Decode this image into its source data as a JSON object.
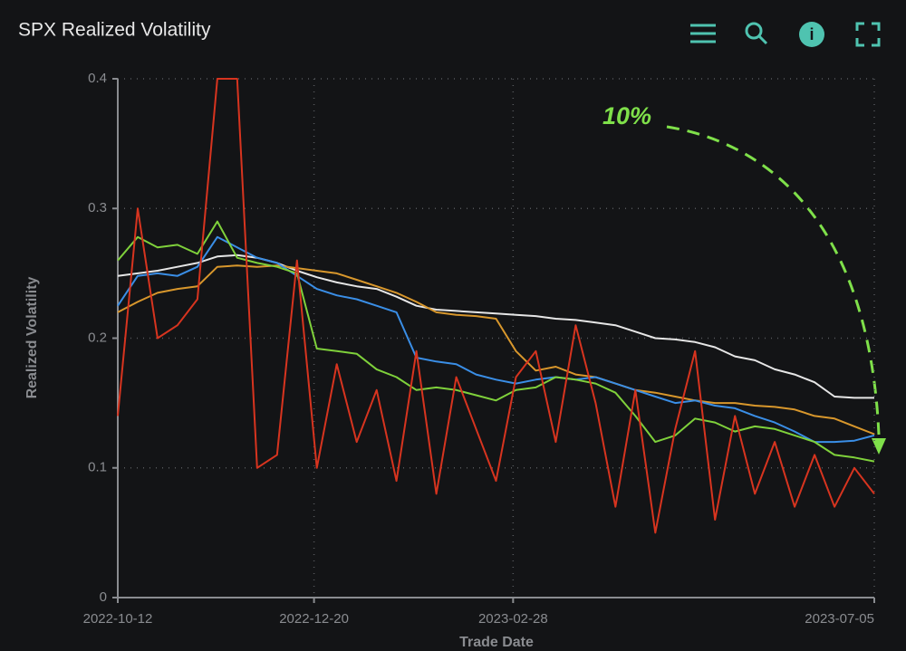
{
  "chart_data": {
    "type": "line",
    "title": "SPX Realized Volatility",
    "x_label": "Trade Date",
    "y_label": "Realized Volatility",
    "annotation": "10%",
    "x": [
      "2022-10-12",
      "2022-10-19",
      "2022-10-26",
      "2022-11-02",
      "2022-11-09",
      "2022-11-16",
      "2022-11-23",
      "2022-11-30",
      "2022-12-07",
      "2022-12-14",
      "2022-12-21",
      "2022-12-28",
      "2023-01-04",
      "2023-01-11",
      "2023-01-18",
      "2023-01-25",
      "2023-02-01",
      "2023-02-08",
      "2023-02-15",
      "2023-02-22",
      "2023-03-01",
      "2023-03-08",
      "2023-03-15",
      "2023-03-22",
      "2023-03-29",
      "2023-04-05",
      "2023-04-12",
      "2023-04-19",
      "2023-04-26",
      "2023-05-03",
      "2023-05-10",
      "2023-05-17",
      "2023-05-24",
      "2023-05-31",
      "2023-06-07",
      "2023-06-14",
      "2023-06-21",
      "2023-06-28",
      "2023-07-05"
    ],
    "xlim": [
      "2022-10-12",
      "2023-07-05"
    ],
    "xticks": [
      "2022-10-12",
      "2022-12-20",
      "2023-02-28",
      "2023-07-05"
    ],
    "ylim": [
      0,
      0.4
    ],
    "yticks": [
      0,
      0.1,
      0.2,
      0.3,
      0.4
    ],
    "grid": true,
    "series": [
      {
        "color": "#e6e6e6",
        "values": [
          0.248,
          0.25,
          0.252,
          0.255,
          0.258,
          0.263,
          0.264,
          0.262,
          0.258,
          0.252,
          0.247,
          0.243,
          0.24,
          0.238,
          0.232,
          0.225,
          0.222,
          0.221,
          0.22,
          0.219,
          0.218,
          0.217,
          0.215,
          0.214,
          0.212,
          0.21,
          0.205,
          0.2,
          0.199,
          0.197,
          0.193,
          0.186,
          0.183,
          0.176,
          0.172,
          0.166,
          0.155,
          0.154,
          0.154
        ]
      },
      {
        "color": "#d8972c",
        "values": [
          0.22,
          0.228,
          0.235,
          0.238,
          0.24,
          0.255,
          0.256,
          0.255,
          0.256,
          0.254,
          0.252,
          0.25,
          0.245,
          0.24,
          0.235,
          0.228,
          0.22,
          0.218,
          0.217,
          0.215,
          0.19,
          0.175,
          0.178,
          0.172,
          0.17,
          0.165,
          0.16,
          0.158,
          0.155,
          0.152,
          0.15,
          0.15,
          0.148,
          0.147,
          0.145,
          0.14,
          0.138,
          0.132,
          0.126
        ]
      },
      {
        "color": "#3a8ee6",
        "values": [
          0.225,
          0.248,
          0.25,
          0.248,
          0.255,
          0.278,
          0.27,
          0.262,
          0.258,
          0.248,
          0.238,
          0.233,
          0.23,
          0.225,
          0.22,
          0.185,
          0.182,
          0.18,
          0.172,
          0.168,
          0.165,
          0.168,
          0.17,
          0.168,
          0.17,
          0.165,
          0.16,
          0.155,
          0.15,
          0.152,
          0.148,
          0.146,
          0.14,
          0.135,
          0.128,
          0.12,
          0.12,
          0.121,
          0.125
        ]
      },
      {
        "color": "#7fd13b",
        "values": [
          0.26,
          0.278,
          0.27,
          0.272,
          0.265,
          0.29,
          0.262,
          0.258,
          0.255,
          0.25,
          0.192,
          0.19,
          0.188,
          0.176,
          0.17,
          0.16,
          0.162,
          0.16,
          0.156,
          0.152,
          0.16,
          0.162,
          0.17,
          0.168,
          0.165,
          0.158,
          0.14,
          0.12,
          0.125,
          0.138,
          0.135,
          0.128,
          0.132,
          0.13,
          0.125,
          0.12,
          0.11,
          0.108,
          0.105
        ]
      },
      {
        "color": "#d7341f",
        "values": [
          0.14,
          0.3,
          0.2,
          0.21,
          0.23,
          0.4,
          0.4,
          0.1,
          0.11,
          0.26,
          0.1,
          0.18,
          0.12,
          0.16,
          0.09,
          0.19,
          0.08,
          0.17,
          0.13,
          0.09,
          0.17,
          0.19,
          0.12,
          0.21,
          0.15,
          0.07,
          0.16,
          0.05,
          0.13,
          0.19,
          0.06,
          0.14,
          0.08,
          0.12,
          0.07,
          0.11,
          0.07,
          0.1,
          0.08
        ]
      }
    ]
  }
}
